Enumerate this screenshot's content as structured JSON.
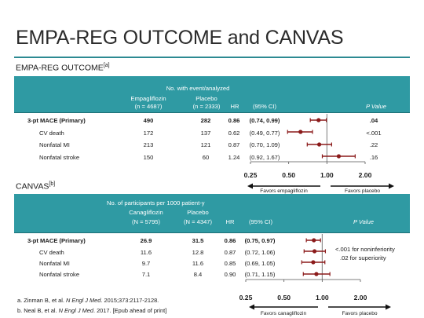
{
  "title": "EMPA-REG OUTCOME and CANVAS",
  "colors": {
    "header": "#2f9aa3",
    "marker": "#8b1a1a",
    "rule": "#2c8a92"
  },
  "chart_data": [
    {
      "type": "table",
      "trial": "EMPA-REG OUTCOME",
      "trial_ref": "[a]",
      "group_header": "No. with event/analyzed",
      "col_drug": "Empagliflozin",
      "col_drug_n": "(n = 4687)",
      "col_placebo": "Placebo",
      "col_placebo_n": "(n = 2333)",
      "col_hr": "HR",
      "col_ci": "(95% CI)",
      "col_p": "P Value",
      "rows": [
        {
          "label": "3-pt MACE (Primary)",
          "drug": "490",
          "placebo": "282",
          "hr": "0.86",
          "ci": "(0.74, 0.99)",
          "p": ".04",
          "bold": true,
          "est": 0.86,
          "lo": 0.74,
          "hi": 0.99
        },
        {
          "label": "CV death",
          "drug": "172",
          "placebo": "137",
          "hr": "0.62",
          "ci": "(0.49, 0.77)",
          "p": "<.001",
          "bold": false,
          "est": 0.62,
          "lo": 0.49,
          "hi": 0.77
        },
        {
          "label": "Nonfatal MI",
          "drug": "213",
          "placebo": "121",
          "hr": "0.87",
          "ci": "(0.70, 1.09)",
          "p": ".22",
          "bold": false,
          "est": 0.87,
          "lo": 0.7,
          "hi": 1.09
        },
        {
          "label": "Nonfatal stroke",
          "drug": "150",
          "placebo": "60",
          "hr": "1.24",
          "ci": "(0.92, 1.67)",
          "p": ".16",
          "bold": false,
          "est": 1.24,
          "lo": 0.92,
          "hi": 1.67
        }
      ],
      "x_scale": "log",
      "xlim": [
        0.25,
        2.0
      ],
      "x_ticks": [
        0.25,
        0.5,
        1.0,
        2.0
      ],
      "x_tick_labels": [
        "0.25",
        "0.50",
        "1.00",
        "2.00"
      ],
      "favors_left": "Favors empagliflozin",
      "favors_right": "Favors placebo"
    },
    {
      "type": "table",
      "trial": "CANVAS",
      "trial_ref": "[b]",
      "group_header": "No. of participants per 1000 patient-y",
      "col_drug": "Canagliflozin",
      "col_drug_n": "(N = 5795)",
      "col_placebo": "Placebo",
      "col_placebo_n": "(N = 4347)",
      "col_hr": "HR",
      "col_ci": "(95% CI)",
      "col_p": "P Value",
      "rows": [
        {
          "label": "3-pt MACE (Primary)",
          "drug": "26.9",
          "placebo": "31.5",
          "hr": "0.86",
          "ci": "(0.75, 0.97)",
          "bold": true,
          "est": 0.86,
          "lo": 0.75,
          "hi": 0.97
        },
        {
          "label": "CV death",
          "drug": "11.6",
          "placebo": "12.8",
          "hr": "0.87",
          "ci": "(0.72, 1.06)",
          "bold": false,
          "est": 0.87,
          "lo": 0.72,
          "hi": 1.06
        },
        {
          "label": "Nonfatal MI",
          "drug": "9.7",
          "placebo": "11.6",
          "hr": "0.85",
          "ci": "(0.69, 1.05)",
          "bold": false,
          "est": 0.85,
          "lo": 0.69,
          "hi": 1.05
        },
        {
          "label": "Nonfatal stroke",
          "drug": "7.1",
          "placebo": "8.4",
          "hr": "0.90",
          "ci": "(0.71, 1.15)",
          "bold": false,
          "est": 0.9,
          "lo": 0.71,
          "hi": 1.15
        }
      ],
      "p_note_1": "<.001 for noninferiority",
      "p_note_2": ".02 for superiority",
      "x_scale": "log",
      "xlim": [
        0.25,
        2.0
      ],
      "x_ticks": [
        0.25,
        0.5,
        1.0,
        2.0
      ],
      "x_tick_labels": [
        "0.25",
        "0.50",
        "1.00",
        "2.00"
      ],
      "favors_left": "Favors canagliflozin",
      "favors_right": "Favors placebo"
    }
  ],
  "footnotes": {
    "a_pre": "a. Zinman B, et al. ",
    "a_journal": "N Engl J Med",
    "a_post": ". 2015;373:2117-2128.",
    "b_pre": "b. Neal B, et al. ",
    "b_journal": "N Engl J Med",
    "b_post": ". 2017. [Epub ahead of print]"
  }
}
